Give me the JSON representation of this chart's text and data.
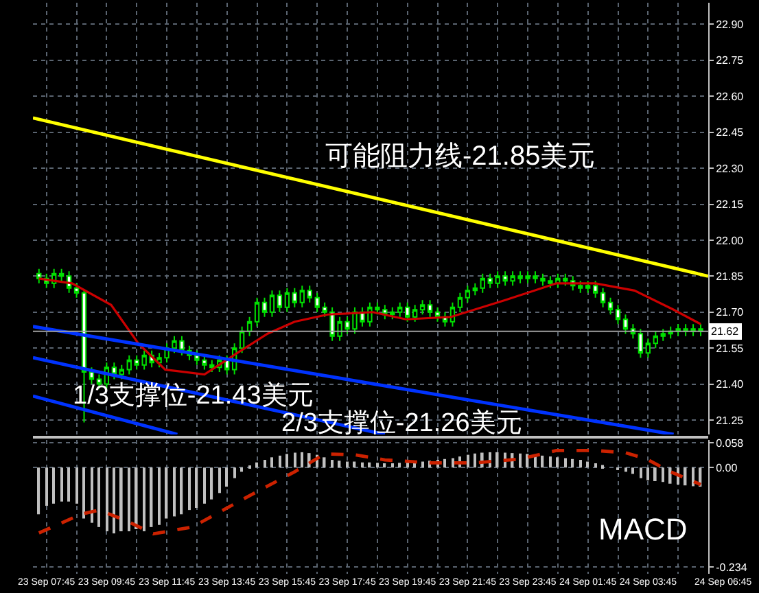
{
  "chart_data": [
    {
      "type": "candlestick",
      "x": [
        "--09-23T07:30",
        "--09-23T07:45",
        "--09-23T08:00",
        "--09-23T08:15",
        "--09-23T08:30",
        "--09-23T08:45",
        "--09-23T09:00",
        "--09-23T09:15",
        "--09-23T09:30",
        "--09-23T09:45",
        "--09-23T10:00",
        "--09-23T10:15",
        "--09-23T10:30",
        "--09-23T10:45",
        "--09-23T11:00",
        "--09-23T11:15",
        "--09-23T11:30",
        "--09-23T11:45",
        "--09-23T12:00",
        "--09-23T12:15",
        "--09-23T12:30",
        "--09-23T12:45",
        "--09-23T13:00",
        "--09-23T13:15",
        "--09-23T13:30",
        "--09-23T13:45",
        "--09-23T14:00",
        "--09-23T14:15",
        "--09-23T14:30",
        "--09-23T14:45",
        "--09-23T15:00",
        "--09-23T15:15",
        "--09-23T15:30",
        "--09-23T15:45",
        "--09-23T16:00",
        "--09-23T16:15",
        "--09-23T16:30",
        "--09-23T16:45",
        "--09-23T17:00",
        "--09-23T17:15",
        "--09-23T17:30",
        "--09-23T17:45",
        "--09-23T18:00",
        "--09-23T18:15",
        "--09-23T18:30",
        "--09-23T18:45",
        "--09-23T19:00",
        "--09-23T19:15",
        "--09-23T19:30",
        "--09-23T19:45",
        "--09-23T20:00",
        "--09-23T20:15",
        "--09-23T20:30",
        "--09-23T20:45",
        "--09-23T21:00",
        "--09-23T21:15",
        "--09-23T21:30",
        "--09-23T21:45",
        "--09-23T22:00",
        "--09-23T22:15",
        "--09-23T22:30",
        "--09-23T22:45",
        "--09-23T23:00",
        "--09-23T23:15",
        "--09-23T23:30",
        "--09-23T23:45",
        "--09-24T00:00",
        "--09-24T00:15",
        "--09-24T00:30",
        "--09-24T00:45",
        "--09-24T01:00",
        "--09-24T01:15",
        "--09-24T01:30",
        "--09-24T01:45",
        "--09-24T02:00",
        "--09-24T02:15",
        "--09-24T02:30",
        "--09-24T02:45",
        "--09-24T03:00",
        "--09-24T03:15",
        "--09-24T03:30",
        "--09-24T03:45",
        "--09-24T04:00",
        "--09-24T04:15",
        "--09-24T04:30",
        "--09-24T04:45",
        "--09-24T05:00",
        "--09-24T05:15",
        "--09-24T05:30"
      ],
      "ohlc": [
        [
          21.86,
          21.88,
          21.82,
          21.84
        ],
        [
          21.84,
          21.86,
          21.8,
          21.82
        ],
        [
          21.82,
          21.88,
          21.8,
          21.86
        ],
        [
          21.86,
          21.88,
          21.83,
          21.85
        ],
        [
          21.85,
          21.87,
          21.78,
          21.8
        ],
        [
          21.8,
          21.82,
          21.76,
          21.78
        ],
        [
          21.78,
          21.79,
          21.24,
          21.45
        ],
        [
          21.45,
          21.47,
          21.4,
          21.42
        ],
        [
          21.42,
          21.44,
          21.38,
          21.4
        ],
        [
          21.4,
          21.49,
          21.38,
          21.47
        ],
        [
          21.47,
          21.49,
          21.42,
          21.44
        ],
        [
          21.44,
          21.48,
          21.42,
          21.46
        ],
        [
          21.46,
          21.52,
          21.44,
          21.5
        ],
        [
          21.5,
          21.52,
          21.46,
          21.48
        ],
        [
          21.48,
          21.54,
          21.46,
          21.52
        ],
        [
          21.52,
          21.54,
          21.47,
          21.49
        ],
        [
          21.49,
          21.53,
          21.47,
          21.51
        ],
        [
          21.51,
          21.57,
          21.49,
          21.55
        ],
        [
          21.55,
          21.6,
          21.53,
          21.58
        ],
        [
          21.58,
          21.6,
          21.52,
          21.54
        ],
        [
          21.54,
          21.56,
          21.5,
          21.52
        ],
        [
          21.52,
          21.54,
          21.48,
          21.5
        ],
        [
          21.5,
          21.52,
          21.46,
          21.48
        ],
        [
          21.48,
          21.5,
          21.45,
          21.47
        ],
        [
          21.47,
          21.52,
          21.45,
          21.5
        ],
        [
          21.5,
          21.52,
          21.44,
          21.46
        ],
        [
          21.46,
          21.57,
          21.44,
          21.55
        ],
        [
          21.55,
          21.64,
          21.53,
          21.62
        ],
        [
          21.62,
          21.68,
          21.6,
          21.66
        ],
        [
          21.66,
          21.76,
          21.64,
          21.74
        ],
        [
          21.74,
          21.76,
          21.68,
          21.7
        ],
        [
          21.7,
          21.79,
          21.68,
          21.77
        ],
        [
          21.77,
          21.79,
          21.7,
          21.72
        ],
        [
          21.72,
          21.8,
          21.7,
          21.78
        ],
        [
          21.78,
          21.8,
          21.72,
          21.74
        ],
        [
          21.74,
          21.81,
          21.72,
          21.79
        ],
        [
          21.79,
          21.81,
          21.74,
          21.76
        ],
        [
          21.76,
          21.78,
          21.7,
          21.72
        ],
        [
          21.72,
          21.74,
          21.68,
          21.7
        ],
        [
          21.7,
          21.72,
          21.58,
          21.6
        ],
        [
          21.6,
          21.68,
          21.58,
          21.66
        ],
        [
          21.66,
          21.68,
          21.61,
          21.63
        ],
        [
          21.63,
          21.72,
          21.61,
          21.7
        ],
        [
          21.7,
          21.72,
          21.64,
          21.66
        ],
        [
          21.66,
          21.74,
          21.64,
          21.72
        ],
        [
          21.72,
          21.74,
          21.69,
          21.71
        ],
        [
          21.71,
          21.73,
          21.67,
          21.69
        ],
        [
          21.69,
          21.72,
          21.67,
          21.7
        ],
        [
          21.7,
          21.74,
          21.68,
          21.72
        ],
        [
          21.72,
          21.74,
          21.66,
          21.68
        ],
        [
          21.68,
          21.73,
          21.66,
          21.71
        ],
        [
          21.71,
          21.75,
          21.69,
          21.73
        ],
        [
          21.73,
          21.75,
          21.68,
          21.7
        ],
        [
          21.7,
          21.72,
          21.66,
          21.68
        ],
        [
          21.68,
          21.7,
          21.64,
          21.66
        ],
        [
          21.66,
          21.74,
          21.64,
          21.72
        ],
        [
          21.72,
          21.78,
          21.7,
          21.76
        ],
        [
          21.76,
          21.81,
          21.74,
          21.79
        ],
        [
          21.79,
          21.82,
          21.77,
          21.8
        ],
        [
          21.8,
          21.86,
          21.78,
          21.84
        ],
        [
          21.84,
          21.86,
          21.8,
          21.82
        ],
        [
          21.82,
          21.87,
          21.8,
          21.85
        ],
        [
          21.85,
          21.87,
          21.81,
          21.83
        ],
        [
          21.83,
          21.87,
          21.81,
          21.85
        ],
        [
          21.85,
          21.87,
          21.82,
          21.84
        ],
        [
          21.84,
          21.87,
          21.82,
          21.85
        ],
        [
          21.85,
          21.87,
          21.82,
          21.84
        ],
        [
          21.84,
          21.86,
          21.81,
          21.83
        ],
        [
          21.83,
          21.85,
          21.8,
          21.82
        ],
        [
          21.82,
          21.86,
          21.8,
          21.84
        ],
        [
          21.84,
          21.86,
          21.81,
          21.83
        ],
        [
          21.83,
          21.85,
          21.79,
          21.81
        ],
        [
          21.81,
          21.83,
          21.78,
          21.8
        ],
        [
          21.8,
          21.83,
          21.78,
          21.81
        ],
        [
          21.81,
          21.83,
          21.76,
          21.78
        ],
        [
          21.78,
          21.8,
          21.72,
          21.74
        ],
        [
          21.74,
          21.76,
          21.69,
          21.71
        ],
        [
          21.71,
          21.73,
          21.65,
          21.67
        ],
        [
          21.67,
          21.69,
          21.61,
          21.63
        ],
        [
          21.63,
          21.65,
          21.59,
          21.61
        ],
        [
          21.61,
          21.63,
          21.51,
          21.53
        ],
        [
          21.53,
          21.59,
          21.51,
          21.57
        ],
        [
          21.57,
          21.62,
          21.55,
          21.6
        ],
        [
          21.6,
          21.63,
          21.58,
          21.61
        ],
        [
          21.61,
          21.64,
          21.59,
          21.62
        ],
        [
          21.62,
          21.65,
          21.6,
          21.63
        ],
        [
          21.63,
          21.65,
          21.6,
          21.62
        ],
        [
          21.62,
          21.65,
          21.6,
          21.63
        ],
        [
          21.63,
          21.65,
          21.6,
          21.62
        ]
      ],
      "series": [
        {
          "type": "line",
          "color": "#cc0000",
          "x": [
            "--09-23T07:30",
            "--09-23T08:36",
            "--09-23T09:54",
            "--09-23T10:48",
            "--09-23T11:42",
            "--09-23T13:00",
            "--09-23T14:06",
            "--09-23T15:06",
            "--09-23T16:00",
            "--09-23T17:06",
            "--09-23T18:36",
            "--09-23T19:42",
            "--09-23T21:12",
            "--09-23T23:00",
            "--09-24T00:42",
            "--09-24T02:00",
            "--09-24T03:18",
            "--09-24T04:36",
            "--09-24T05:30"
          ],
          "values": [
            21.84,
            21.82,
            21.73,
            21.57,
            21.46,
            21.44,
            21.53,
            21.61,
            21.66,
            21.69,
            21.7,
            21.67,
            21.68,
            21.75,
            21.82,
            21.82,
            21.79,
            21.71,
            21.65
          ]
        },
        {
          "type": "line",
          "color": "#ffff00",
          "x": [
            "--09-23T07:18",
            "--09-24T05:45"
          ],
          "values": [
            22.51,
            21.85
          ]
        },
        {
          "type": "line",
          "color": "#0033ff",
          "x": [
            "--09-23T07:18",
            "--09-24T04:36"
          ],
          "values": [
            21.64,
            21.19
          ]
        },
        {
          "type": "line",
          "color": "#0033ff",
          "x": [
            "--09-23T07:18",
            "--09-23T19:00"
          ],
          "values": [
            21.51,
            21.19
          ]
        },
        {
          "type": "line",
          "color": "#0033ff",
          "x": [
            "--09-23T07:18",
            "--09-23T12:06"
          ],
          "values": [
            21.35,
            21.19
          ]
        }
      ],
      "xlim": [
        "--09-23T07:18",
        "--09-24T05:45"
      ],
      "xticks": [
        {
          "value": "--09-23T07:45",
          "label": "23 Sep 07:45"
        },
        {
          "value": "--09-23T08:45",
          "label": null
        },
        {
          "value": "--09-23T09:45",
          "label": "23 Sep 09:45"
        },
        {
          "value": "--09-23T10:45",
          "label": null
        },
        {
          "value": "--09-23T11:45",
          "label": "23 Sep 11:45"
        },
        {
          "value": "--09-23T12:45",
          "label": null
        },
        {
          "value": "--09-23T13:45",
          "label": "23 Sep 13:45"
        },
        {
          "value": "--09-23T14:45",
          "label": null
        },
        {
          "value": "--09-23T15:45",
          "label": "23 Sep 15:45"
        },
        {
          "value": "--09-23T16:45",
          "label": null
        },
        {
          "value": "--09-23T17:45",
          "label": "23 Sep 17:45"
        },
        {
          "value": "--09-23T18:45",
          "label": null
        },
        {
          "value": "--09-23T19:45",
          "label": "23 Sep 19:45"
        },
        {
          "value": "--09-23T20:45",
          "label": null
        },
        {
          "value": "--09-23T21:45",
          "label": "23 Sep 21:45"
        },
        {
          "value": "--09-23T22:45",
          "label": null
        },
        {
          "value": "--09-23T23:45",
          "label": "23 Sep 23:45"
        },
        {
          "value": "--09-24T00:45",
          "label": null
        },
        {
          "value": "--09-24T01:45",
          "label": "24 Sep 01:45"
        },
        {
          "value": "--09-24T02:45",
          "label": null
        },
        {
          "value": "--09-24T03:45",
          "label": "24 Sep 03:45"
        },
        {
          "value": "--09-24T04:45",
          "label": null
        }
      ],
      "ylim": [
        21.19,
        22.99
      ],
      "yticks": [
        {
          "value": 22.9,
          "label": "22.90"
        },
        22.75,
        {
          "value": 22.6,
          "label": "22.60"
        },
        22.45,
        {
          "value": 22.3,
          "label": "22.30"
        },
        22.15,
        {
          "value": 22.0,
          "label": "22.00"
        },
        21.85,
        {
          "value": 21.7,
          "label": "21.70"
        },
        21.55,
        {
          "value": 21.4,
          "label": "21.40"
        },
        21.25
      ],
      "ref_lines": [
        {
          "axis": "y",
          "value": 21.62,
          "label": "21.62",
          "color": "#a0a0a0"
        }
      ],
      "annotations": [
        "可能阻力线-21.85美元",
        "1/3支撑位-21.43美元",
        "2/3支撑位-21.26美元"
      ],
      "grid": true,
      "tick_labels": "y"
    },
    {
      "type": "bar",
      "x": [
        "--09-23T07:30",
        "--09-23T07:45",
        "--09-23T08:00",
        "--09-23T08:15",
        "--09-23T08:30",
        "--09-23T08:45",
        "--09-23T09:00",
        "--09-23T09:15",
        "--09-23T09:30",
        "--09-23T09:45",
        "--09-23T10:00",
        "--09-23T10:15",
        "--09-23T10:30",
        "--09-23T10:45",
        "--09-23T11:00",
        "--09-23T11:15",
        "--09-23T11:30",
        "--09-23T11:45",
        "--09-23T12:00",
        "--09-23T12:15",
        "--09-23T12:30",
        "--09-23T12:45",
        "--09-23T13:00",
        "--09-23T13:15",
        "--09-23T13:30",
        "--09-23T13:45",
        "--09-23T14:00",
        "--09-23T14:15",
        "--09-23T14:30",
        "--09-23T14:45",
        "--09-23T15:00",
        "--09-23T15:15",
        "--09-23T15:30",
        "--09-23T15:45",
        "--09-23T16:00",
        "--09-23T16:15",
        "--09-23T16:30",
        "--09-23T16:45",
        "--09-23T17:00",
        "--09-23T17:15",
        "--09-23T17:30",
        "--09-23T17:45",
        "--09-23T18:00",
        "--09-23T18:15",
        "--09-23T18:30",
        "--09-23T18:45",
        "--09-23T19:00",
        "--09-23T19:15",
        "--09-23T19:30",
        "--09-23T19:45",
        "--09-23T20:00",
        "--09-23T20:15",
        "--09-23T20:30",
        "--09-23T20:45",
        "--09-23T21:00",
        "--09-23T21:15",
        "--09-23T21:30",
        "--09-23T21:45",
        "--09-23T22:00",
        "--09-23T22:15",
        "--09-23T22:30",
        "--09-23T22:45",
        "--09-23T23:00",
        "--09-23T23:15",
        "--09-23T23:30",
        "--09-23T23:45",
        "--09-24T00:00",
        "--09-24T00:15",
        "--09-24T00:30",
        "--09-24T00:45",
        "--09-24T01:00",
        "--09-24T01:15",
        "--09-24T01:30",
        "--09-24T01:45",
        "--09-24T02:00",
        "--09-24T02:15",
        "--09-24T02:30",
        "--09-24T02:45",
        "--09-24T03:00",
        "--09-24T03:15",
        "--09-24T03:30",
        "--09-24T03:45",
        "--09-24T04:00",
        "--09-24T04:15",
        "--09-24T04:30",
        "--09-24T04:45",
        "--09-24T05:00",
        "--09-24T05:15",
        "--09-24T05:30"
      ],
      "series": [
        {
          "type": "bar",
          "color": "#c0c0c0",
          "values": [
            -0.11,
            -0.09,
            -0.085,
            -0.08,
            -0.08,
            -0.085,
            -0.12,
            -0.13,
            -0.14,
            -0.15,
            -0.155,
            -0.15,
            -0.15,
            -0.145,
            -0.15,
            -0.14,
            -0.135,
            -0.12,
            -0.115,
            -0.11,
            -0.1,
            -0.095,
            -0.085,
            -0.075,
            -0.06,
            -0.045,
            -0.025,
            -0.01,
            0.005,
            0.012,
            0.018,
            0.024,
            0.028,
            0.032,
            0.035,
            0.036,
            0.034,
            0.03,
            0.024,
            0.018,
            0.016,
            0.014,
            0.014,
            0.012,
            0.012,
            0.011,
            0.01,
            0.01,
            0.011,
            0.012,
            0.012,
            0.014,
            0.016,
            0.018,
            0.02,
            0.022,
            0.026,
            0.03,
            0.033,
            0.035,
            0.036,
            0.036,
            0.035,
            0.034,
            0.033,
            0.032,
            0.03,
            0.028,
            0.026,
            0.024,
            0.022,
            0.02,
            0.018,
            0.014,
            0.01,
            0.006,
            0.0,
            -0.005,
            -0.01,
            -0.015,
            -0.025,
            -0.03,
            -0.032,
            -0.034,
            -0.038,
            -0.04,
            -0.042,
            -0.044,
            -0.045
          ]
        },
        {
          "type": "line",
          "color": "#cc2200",
          "line_style": "dashed",
          "x": [
            "--09-23T07:30",
            "--09-23T08:54",
            "--09-23T09:30",
            "--09-23T10:24",
            "--09-23T11:18",
            "--09-23T12:36",
            "--09-23T14:24",
            "--09-23T16:00",
            "--09-23T17:00",
            "--09-23T18:00",
            "--09-23T19:00",
            "--09-23T20:30",
            "--09-23T22:00",
            "--09-23T23:30",
            "--09-24T00:42",
            "--09-24T02:00",
            "--09-24T03:00",
            "--09-24T03:42",
            "--09-24T04:30",
            "--09-24T05:30"
          ],
          "values": [
            -0.154,
            -0.11,
            -0.1,
            -0.125,
            -0.156,
            -0.14,
            -0.07,
            -0.01,
            0.032,
            0.03,
            0.018,
            0.011,
            0.011,
            0.02,
            0.04,
            0.04,
            0.035,
            0.02,
            -0.01,
            -0.04
          ]
        }
      ],
      "xlim": [
        "--09-23T07:18",
        "--09-24T05:45"
      ],
      "xticks": [
        {
          "value": "--09-23T07:45",
          "label": "23 Sep 07:45"
        },
        {
          "value": "--09-23T08:45",
          "label": null
        },
        {
          "value": "--09-23T09:45",
          "label": "23 Sep 09:45"
        },
        {
          "value": "--09-23T10:45",
          "label": null
        },
        {
          "value": "--09-23T11:45",
          "label": "23 Sep 11:45"
        },
        {
          "value": "--09-23T12:45",
          "label": null
        },
        {
          "value": "--09-23T13:45",
          "label": "23 Sep 13:45"
        },
        {
          "value": "--09-23T14:45",
          "label": null
        },
        {
          "value": "--09-23T15:45",
          "label": "23 Sep 15:45"
        },
        {
          "value": "--09-23T16:45",
          "label": null
        },
        {
          "value": "--09-23T17:45",
          "label": "23 Sep 17:45"
        },
        {
          "value": "--09-23T18:45",
          "label": null
        },
        {
          "value": "--09-23T19:45",
          "label": "23 Sep 19:45"
        },
        {
          "value": "--09-23T20:45",
          "label": null
        },
        {
          "value": "--09-23T21:45",
          "label": "23 Sep 21:45"
        },
        {
          "value": "--09-23T22:45",
          "label": null
        },
        {
          "value": "--09-23T23:45",
          "label": "23 Sep 23:45"
        },
        {
          "value": "--09-24T00:45",
          "label": null
        },
        {
          "value": "--09-24T01:45",
          "label": "24 Sep 01:45"
        },
        {
          "value": "--09-24T02:45",
          "label": null
        },
        {
          "value": "--09-24T03:45",
          "label": "24 Sep 03:45"
        },
        {
          "value": "--09-24T04:45",
          "label": null
        }
      ],
      "ylim": [
        -0.25,
        0.065
      ],
      "yticks": [
        0.058,
        {
          "value": 0,
          "label": "0.00"
        },
        -0.234
      ],
      "annotations": [
        "MACD",
        "24 Sep 06:45"
      ],
      "grid": true
    }
  ]
}
